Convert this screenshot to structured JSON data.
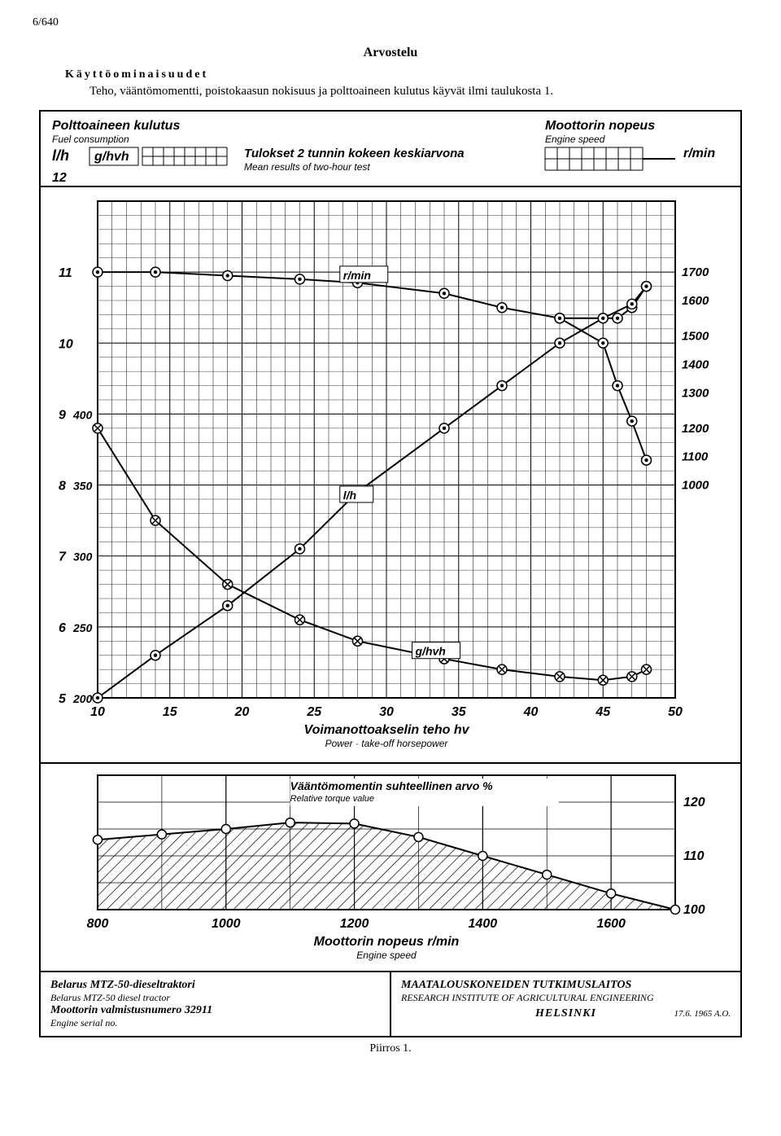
{
  "page_number": "6/640",
  "review_title": "Arvostelu",
  "features_heading": "Käyttöominaisuudet",
  "intro_text": "Teho, vääntömomentti, poistokaasun nokisuus ja polttoaineen kulutus käyvät ilmi taulukosta 1.",
  "header_labels": {
    "fuel_consumption_fi": "Polttoaineen kulutus",
    "fuel_consumption_en": "Fuel consumption",
    "lh": "l/h",
    "ghvh": "g/hvh",
    "results_fi": "Tulokset 2 tunnin kokeen keskiarvona",
    "results_en": "Mean results of two-hour test",
    "engine_speed_fi": "Moottorin nopeus",
    "engine_speed_en": "Engine speed",
    "rmin": "r/min"
  },
  "upper_chart": {
    "x": {
      "min": 10,
      "max": 50,
      "ticks": [
        10,
        15,
        20,
        25,
        30,
        35,
        40,
        45,
        50
      ]
    },
    "y_left_lh": {
      "min": 5,
      "max": 12,
      "ticks": [
        5,
        6,
        7,
        8,
        9,
        10,
        11,
        12
      ]
    },
    "y_left_ghvh": {
      "map": {
        "5": 200,
        "6": 250,
        "7": 300,
        "8": 350,
        "9": 400
      }
    },
    "y_right_rmin": {
      "map": {
        "11": 1700,
        "10.6": 1600,
        "10.1": 1500,
        "9.7": 1400,
        "9.3": 1300,
        "8.8": 1200,
        "8.4": 1100,
        "8.0": 1000
      }
    },
    "right_ticks": [
      1700,
      1600,
      1500,
      1400,
      1300,
      1200,
      1100,
      1000
    ],
    "series": {
      "rmin_top": {
        "label": "r/min",
        "pts": [
          [
            10,
            11.0
          ],
          [
            14,
            11.0
          ],
          [
            19,
            10.95
          ],
          [
            24,
            10.9
          ],
          [
            28,
            10.85
          ],
          [
            34,
            10.7
          ],
          [
            38,
            10.5
          ],
          [
            42,
            10.35
          ],
          [
            46,
            10.35
          ],
          [
            47,
            10.5
          ],
          [
            48,
            10.8
          ]
        ]
      },
      "rmin_bottom_branch": {
        "pts": [
          [
            42,
            10.35
          ],
          [
            45,
            10.0
          ],
          [
            46,
            9.4
          ],
          [
            47,
            8.9
          ],
          [
            48,
            8.35
          ]
        ]
      },
      "lh": {
        "label": "l/h",
        "pts": [
          [
            10,
            5.0
          ],
          [
            14,
            5.6
          ],
          [
            19,
            6.3
          ],
          [
            24,
            7.1
          ],
          [
            28,
            7.9
          ],
          [
            34,
            8.8
          ],
          [
            38,
            9.4
          ],
          [
            42,
            10.0
          ],
          [
            45,
            10.35
          ],
          [
            47,
            10.55
          ],
          [
            48,
            10.8
          ]
        ]
      },
      "ghvh": {
        "label": "g/hvh",
        "pts": [
          [
            10,
            8.8
          ],
          [
            14,
            7.5
          ],
          [
            19,
            6.6
          ],
          [
            24,
            6.1
          ],
          [
            28,
            5.8
          ],
          [
            34,
            5.55
          ],
          [
            38,
            5.4
          ],
          [
            42,
            5.3
          ],
          [
            45,
            5.25
          ],
          [
            47,
            5.3
          ],
          [
            48,
            5.4
          ]
        ]
      }
    },
    "xlabel_fi": "Voimanottoakselin teho hv",
    "xlabel_en": "Power · take-off horsepower"
  },
  "lower_chart": {
    "x": {
      "min": 800,
      "max": 1700,
      "ticks": [
        800,
        1000,
        1200,
        1400,
        1600
      ]
    },
    "y": {
      "min": 100,
      "max": 125,
      "right_ticks": [
        120,
        110,
        100
      ]
    },
    "series_torque": {
      "pts": [
        [
          800,
          113
        ],
        [
          900,
          114
        ],
        [
          1000,
          115
        ],
        [
          1100,
          116.2
        ],
        [
          1200,
          116.0
        ],
        [
          1300,
          113.5
        ],
        [
          1400,
          110
        ],
        [
          1500,
          106.5
        ],
        [
          1600,
          103
        ],
        [
          1700,
          100
        ]
      ]
    },
    "label_fi": "Vääntömomentin suhteellinen arvo %",
    "label_en": "Relative torque value",
    "xlabel_fi": "Moottorin nopeus r/min",
    "xlabel_en": "Engine speed"
  },
  "footer": {
    "tractor_fi": "Belarus MTZ-50-dieseltraktori",
    "tractor_en": "Belarus MTZ-50 diesel tractor",
    "serial_fi": "Moottorin valmistusnumero 32911",
    "serial_en": "Engine serial no.",
    "inst_fi": "MAATALOUSKONEIDEN TUTKIMUSLAITOS",
    "inst_en": "RESEARCH INSTITUTE OF AGRICULTURAL ENGINEERING",
    "helsinki": "HELSINKI",
    "date": "17.6. 1965 A.O."
  },
  "caption": "Piirros 1.",
  "colors": {
    "ink": "#000000",
    "bg": "#ffffff",
    "grid": "#000000"
  }
}
